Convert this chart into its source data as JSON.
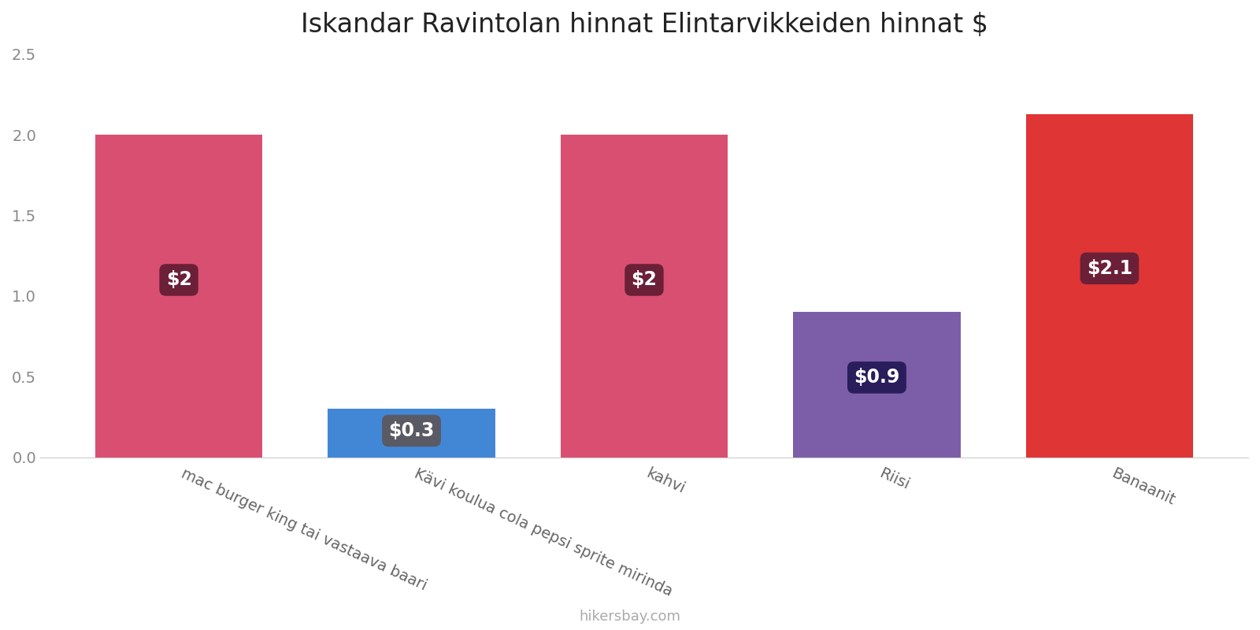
{
  "title": "Iskandar Ravintolan hinnat Elintarvikkeiden hinnat $",
  "categories": [
    "mac burger king tai vastaava baari",
    "Kävi koulua cola pepsi sprite mirinda",
    "kahvi",
    "Riisi",
    "Banaanit"
  ],
  "values": [
    2.0,
    0.3,
    2.0,
    0.9,
    2.13
  ],
  "bar_colors": [
    "#d94f72",
    "#4287d6",
    "#d94f72",
    "#7b5ea7",
    "#e03535"
  ],
  "label_texts": [
    "$2",
    "$0.3",
    "$2",
    "$0.9",
    "$2.1"
  ],
  "label_bg_colors": [
    "#6b2038",
    "#5a5a65",
    "#6b2038",
    "#2a1d5c",
    "#6b2038"
  ],
  "ylim": [
    0,
    2.5
  ],
  "yticks": [
    0,
    0.5,
    1.0,
    1.5,
    2.0,
    2.5
  ],
  "background_color": "#ffffff",
  "title_fontsize": 24,
  "footer_text": "hikersbay.com",
  "bar_width": 0.72
}
